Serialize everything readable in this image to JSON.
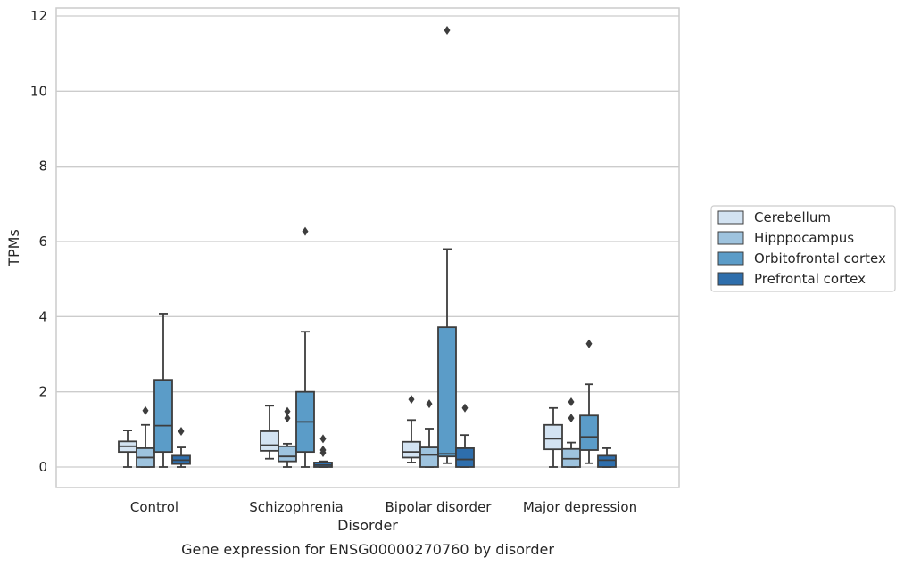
{
  "chart_data": {
    "type": "box",
    "xlabel": "Disorder",
    "ylabel": "TPMs",
    "caption": "Gene expression for ENSG00000270760 by disorder",
    "ylim": [
      -0.55,
      12.2
    ],
    "yticks": [
      0,
      2,
      4,
      6,
      8,
      10,
      12
    ],
    "grid": "horizontal",
    "legend_position": "right",
    "categories": [
      "Control",
      "Schizophrenia",
      "Bipolar disorder",
      "Major depression"
    ],
    "series": [
      {
        "name": "Cerebellum",
        "color": "#d3e3f2",
        "boxes": [
          {
            "whisker_low": 0.0,
            "q1": 0.4,
            "median": 0.55,
            "q3": 0.68,
            "whisker_high": 0.97,
            "outliers": []
          },
          {
            "whisker_low": 0.22,
            "q1": 0.43,
            "median": 0.58,
            "q3": 0.95,
            "whisker_high": 1.63,
            "outliers": []
          },
          {
            "whisker_low": 0.12,
            "q1": 0.25,
            "median": 0.4,
            "q3": 0.67,
            "whisker_high": 1.25,
            "outliers": [
              1.8
            ]
          },
          {
            "whisker_low": 0.0,
            "q1": 0.47,
            "median": 0.75,
            "q3": 1.12,
            "whisker_high": 1.57,
            "outliers": []
          }
        ]
      },
      {
        "name": "Hipppocampus",
        "color": "#9ec3de",
        "boxes": [
          {
            "whisker_low": 0.0,
            "q1": 0.0,
            "median": 0.25,
            "q3": 0.5,
            "whisker_high": 1.12,
            "outliers": [
              1.5
            ]
          },
          {
            "whisker_low": 0.0,
            "q1": 0.15,
            "median": 0.28,
            "q3": 0.55,
            "whisker_high": 0.62,
            "outliers": [
              1.3,
              1.48
            ]
          },
          {
            "whisker_low": 0.0,
            "q1": 0.0,
            "median": 0.32,
            "q3": 0.52,
            "whisker_high": 1.02,
            "outliers": [
              1.68
            ]
          },
          {
            "whisker_low": 0.0,
            "q1": 0.0,
            "median": 0.22,
            "q3": 0.48,
            "whisker_high": 0.65,
            "outliers": [
              1.3,
              1.73
            ]
          }
        ]
      },
      {
        "name": "Orbitofrontal cortex",
        "color": "#5b9cc8",
        "boxes": [
          {
            "whisker_low": 0.0,
            "q1": 0.4,
            "median": 1.1,
            "q3": 2.32,
            "whisker_high": 4.08,
            "outliers": []
          },
          {
            "whisker_low": 0.0,
            "q1": 0.4,
            "median": 1.2,
            "q3": 2.0,
            "whisker_high": 3.6,
            "outliers": [
              6.27
            ]
          },
          {
            "whisker_low": 0.1,
            "q1": 0.28,
            "median": 0.35,
            "q3": 3.72,
            "whisker_high": 5.8,
            "outliers": [
              11.62
            ]
          },
          {
            "whisker_low": 0.1,
            "q1": 0.45,
            "median": 0.8,
            "q3": 1.37,
            "whisker_high": 2.2,
            "outliers": [
              3.28
            ]
          }
        ]
      },
      {
        "name": "Prefrontal cortex",
        "color": "#2e6eac",
        "boxes": [
          {
            "whisker_low": 0.0,
            "q1": 0.08,
            "median": 0.18,
            "q3": 0.3,
            "whisker_high": 0.52,
            "outliers": [
              0.95
            ]
          },
          {
            "whisker_low": 0.0,
            "q1": 0.0,
            "median": 0.05,
            "q3": 0.12,
            "whisker_high": 0.15,
            "outliers": [
              0.38,
              0.45,
              0.75
            ]
          },
          {
            "whisker_low": 0.0,
            "q1": 0.0,
            "median": 0.2,
            "q3": 0.5,
            "whisker_high": 0.85,
            "outliers": [
              1.57
            ]
          },
          {
            "whisker_low": 0.0,
            "q1": 0.0,
            "median": 0.18,
            "q3": 0.3,
            "whisker_high": 0.5,
            "outliers": []
          }
        ]
      }
    ]
  }
}
